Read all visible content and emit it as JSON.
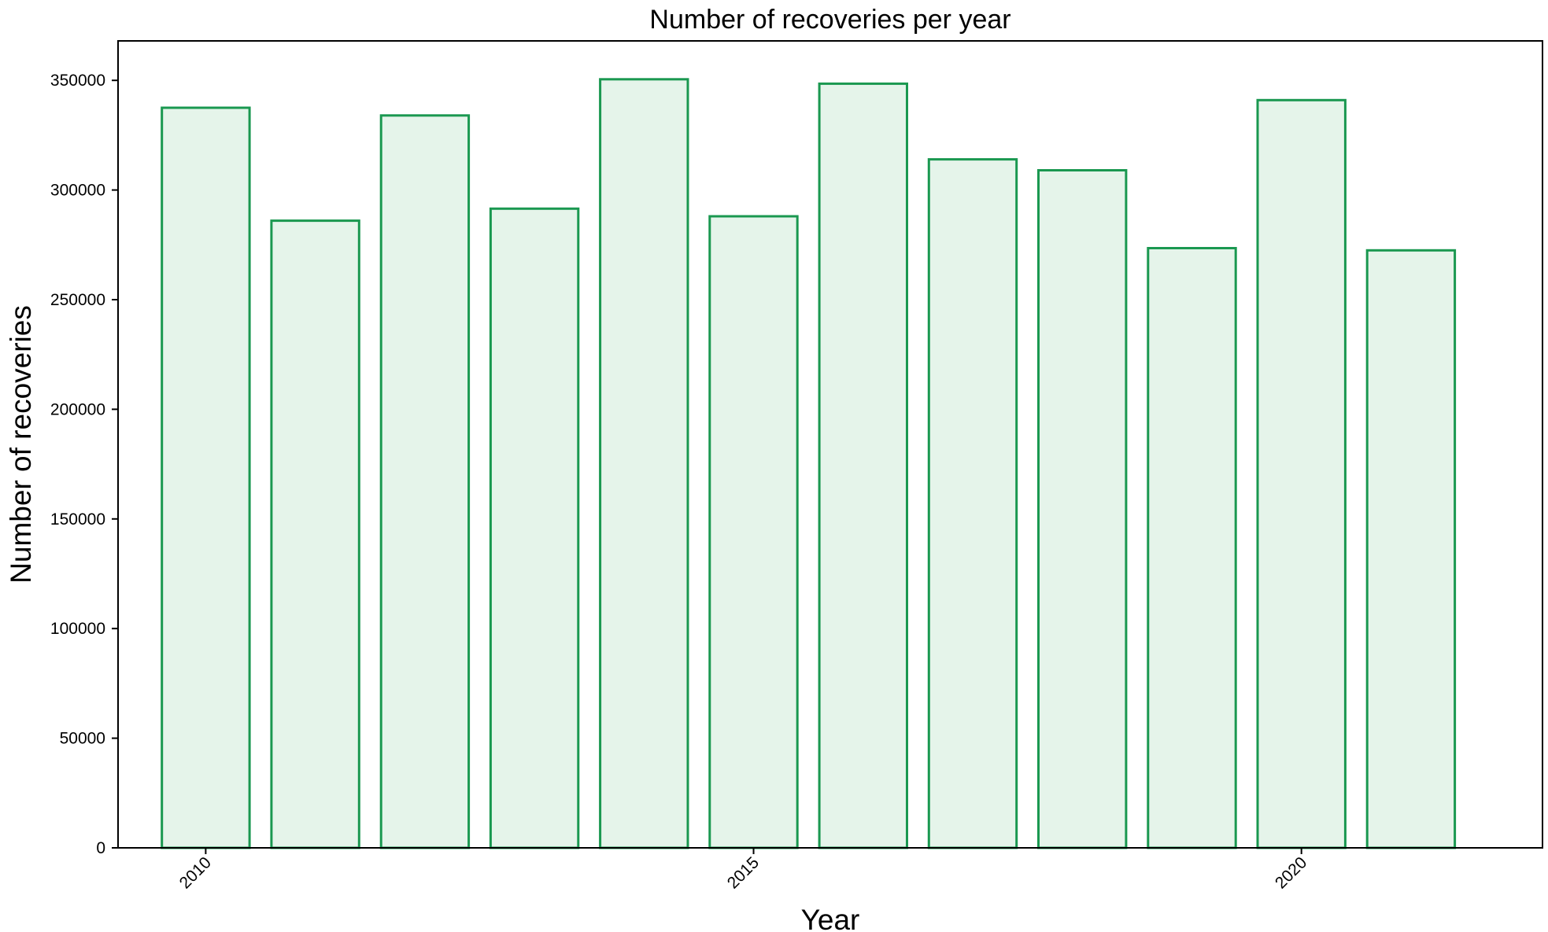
{
  "chart_data": {
    "type": "bar",
    "title": "Number of recoveries per year",
    "xlabel": "Year",
    "ylabel": "Number of recoveries",
    "x": [
      2010,
      2011,
      2012,
      2013,
      2014,
      2015,
      2016,
      2017,
      2018,
      2019,
      2020,
      2021
    ],
    "values": [
      337500,
      286000,
      334000,
      291500,
      350500,
      288000,
      348500,
      314000,
      309000,
      273500,
      341000,
      272500
    ],
    "xlim": [
      2009.2,
      2022.2
    ],
    "ylim": [
      0,
      368000
    ],
    "x_ticks": [
      2010,
      2015,
      2020
    ],
    "x_tick_labels": [
      "2010",
      "2015",
      "2020"
    ],
    "x_tick_rotation_deg": 45,
    "y_ticks": [
      0,
      50000,
      100000,
      150000,
      200000,
      250000,
      300000,
      350000
    ],
    "y_tick_labels": [
      "0",
      "50000",
      "100000",
      "150000",
      "200000",
      "250000",
      "300000",
      "350000"
    ],
    "bar_width_years": 0.8,
    "grid": false,
    "legend": "none",
    "colors": {
      "bar_fill": "#e5f4ea",
      "bar_edge": "#1a9850",
      "axes": "#000000",
      "background": "#ffffff"
    }
  }
}
